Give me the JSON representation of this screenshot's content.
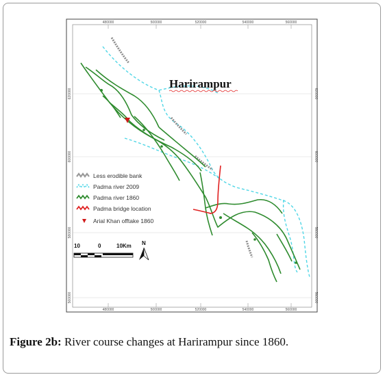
{
  "map": {
    "place_label": "Harirampur",
    "x_ticks": [
      "480000",
      "500000",
      "520000",
      "540000",
      "560000"
    ],
    "y_ticks": [
      "620000",
      "600000",
      "580000",
      "560000"
    ],
    "legend": [
      {
        "label": "Less erodible bank",
        "color": "#9a9a9a",
        "style": "gray-zigzag"
      },
      {
        "label": "Padma river 2009",
        "color": "#4fd6e6",
        "style": "cyan-dashed-zigzag"
      },
      {
        "label": "Padma river 1860",
        "color": "#2e8b2e",
        "style": "green-zigzag"
      },
      {
        "label": "Padma bridge location",
        "color": "#e02020",
        "style": "red-zigzag"
      },
      {
        "label": "Arial Khan offtake 1860",
        "color": "#d01818",
        "style": "red-marker"
      }
    ],
    "scale": {
      "left": "10",
      "mid": "0",
      "right": "10Km"
    },
    "north": "N"
  },
  "caption": {
    "label": "Figure 2b:",
    "text": " River course changes at Harirampur since 1860."
  }
}
